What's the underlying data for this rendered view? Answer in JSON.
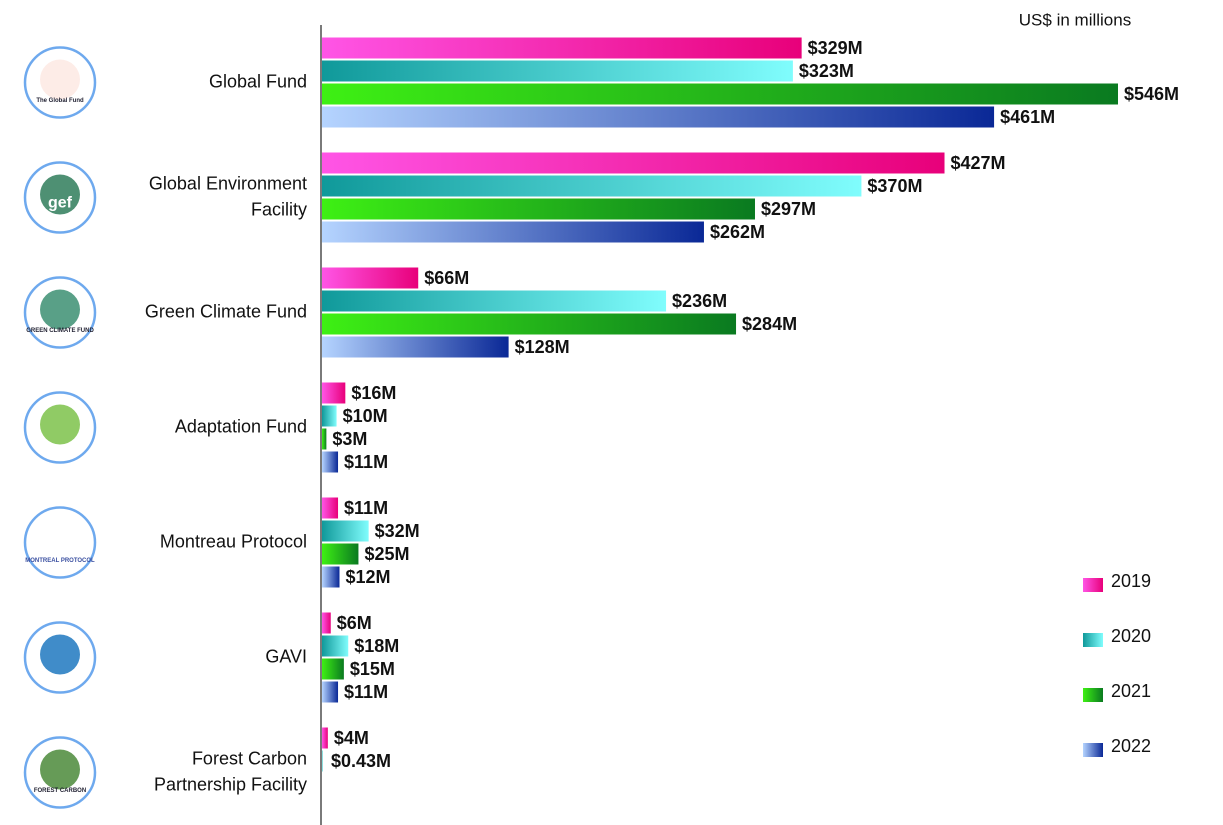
{
  "chart_data": {
    "type": "bar",
    "orientation": "horizontal",
    "subtitle": "US$ in millions",
    "categories": [
      "Global Fund",
      "Global Environment Facility",
      "Green Climate Fund",
      "Adaptation Fund",
      "Montreau Protocol",
      "GAVI",
      "Forest Carbon Partnership Facility"
    ],
    "logos": [
      "The Global Fund",
      "gef",
      "GREEN CLIMATE FUND",
      null,
      "MONTREAL PROTOCOL",
      null,
      "FOREST CARBON"
    ],
    "series": [
      {
        "name": "2019",
        "color": [
          "#ff55e6",
          "#e8007a"
        ],
        "values": [
          329,
          427,
          66,
          16,
          11,
          6,
          4
        ],
        "value_labels": [
          "$329M",
          "$427M",
          "$66M",
          "$16M",
          "$11M",
          "$6M",
          "$4M"
        ]
      },
      {
        "name": "2020",
        "color": [
          "#10999a",
          "#80fdfd"
        ],
        "values": [
          323,
          370,
          236,
          10,
          32,
          18,
          0.43
        ],
        "value_labels": [
          "$323M",
          "$370M",
          "$236M",
          "$10M",
          "$32M",
          "$18M",
          "$0.43M"
        ]
      },
      {
        "name": "2021",
        "color": [
          "#3ef014",
          "#0a7a20"
        ],
        "values": [
          546,
          297,
          284,
          3,
          25,
          15,
          null
        ],
        "value_labels": [
          "$546M",
          "$297M",
          "$284M",
          "$3M",
          "$25M",
          "$15M",
          null
        ]
      },
      {
        "name": "2022",
        "color": [
          "#b5d4ff",
          "#0a2896"
        ],
        "values": [
          461,
          262,
          128,
          11,
          12,
          11,
          null
        ],
        "value_labels": [
          "$461M",
          "$262M",
          "$128M",
          "$11M",
          "$12M",
          "$11M",
          null
        ]
      }
    ],
    "legend": "right"
  }
}
